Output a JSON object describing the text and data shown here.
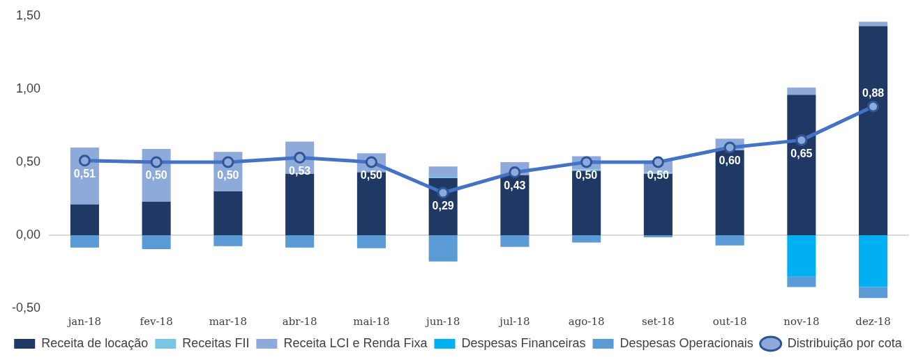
{
  "chart_data": {
    "type": "bar",
    "stacked": true,
    "categories": [
      "jan-18",
      "fev-18",
      "mar-18",
      "abr-18",
      "mai-18",
      "jun-18",
      "jul-18",
      "ago-18",
      "set-18",
      "out-18",
      "nov-18",
      "dez-18"
    ],
    "ylim": [
      -0.5,
      1.5
    ],
    "yticks": [
      {
        "value": -0.5,
        "label": "-0,50"
      },
      {
        "value": 0,
        "label": "0,00"
      },
      {
        "value": 0.5,
        "label": "0,50"
      },
      {
        "value": 1,
        "label": "1,00"
      },
      {
        "value": 1.5,
        "label": "1,50"
      }
    ],
    "grid": false,
    "legend": "bottom",
    "ref_lines": [
      {
        "axis": "y",
        "value": 0,
        "color": "#d9d9d9"
      }
    ],
    "series": [
      {
        "name": "Receita de locação",
        "color": "#1f3864",
        "values": [
          0.21,
          0.23,
          0.3,
          0.42,
          0.43,
          0.39,
          0.41,
          0.44,
          0.42,
          0.58,
          0.96,
          1.43
        ]
      },
      {
        "name": "Receitas FII",
        "color": "#79c5e6",
        "values": [
          0,
          0,
          0,
          0,
          0,
          0.01,
          null,
          0.01,
          0.01,
          null,
          0,
          0
        ]
      },
      {
        "name": "Receita LCI e Renda Fixa",
        "color": "#8eaadb",
        "values": [
          0.39,
          0.36,
          0.27,
          0.22,
          0.13,
          0.07,
          0.09,
          0.09,
          0.08,
          0.08,
          0.05,
          0.03
        ]
      },
      {
        "name": "Despesas Financeiras",
        "color": "#00b0f0",
        "values": [
          0,
          0,
          0,
          0,
          0,
          0,
          0,
          0,
          0,
          0,
          -0.285,
          -0.355
        ]
      },
      {
        "name": "Despesas Operacionais",
        "color": "#5b9bd5",
        "values": [
          -0.085,
          -0.095,
          -0.075,
          -0.085,
          -0.09,
          -0.18,
          -0.08,
          -0.05,
          -0.015,
          -0.07,
          -0.07,
          -0.075
        ]
      },
      {
        "name": "Distribuição por cota",
        "type": "line",
        "color": "#4472c4",
        "marker": "circle",
        "values": [
          0.51,
          0.5,
          0.5,
          0.53,
          0.5,
          0.29,
          0.43,
          0.5,
          0.5,
          0.6,
          0.65,
          0.88
        ],
        "value_labels": [
          "0,51",
          "0,50",
          "0,50",
          "0,53",
          "0,50",
          "0,29",
          "0,43",
          "0,50",
          "0,50",
          "0,60",
          "0,65",
          "0,88"
        ]
      }
    ]
  }
}
